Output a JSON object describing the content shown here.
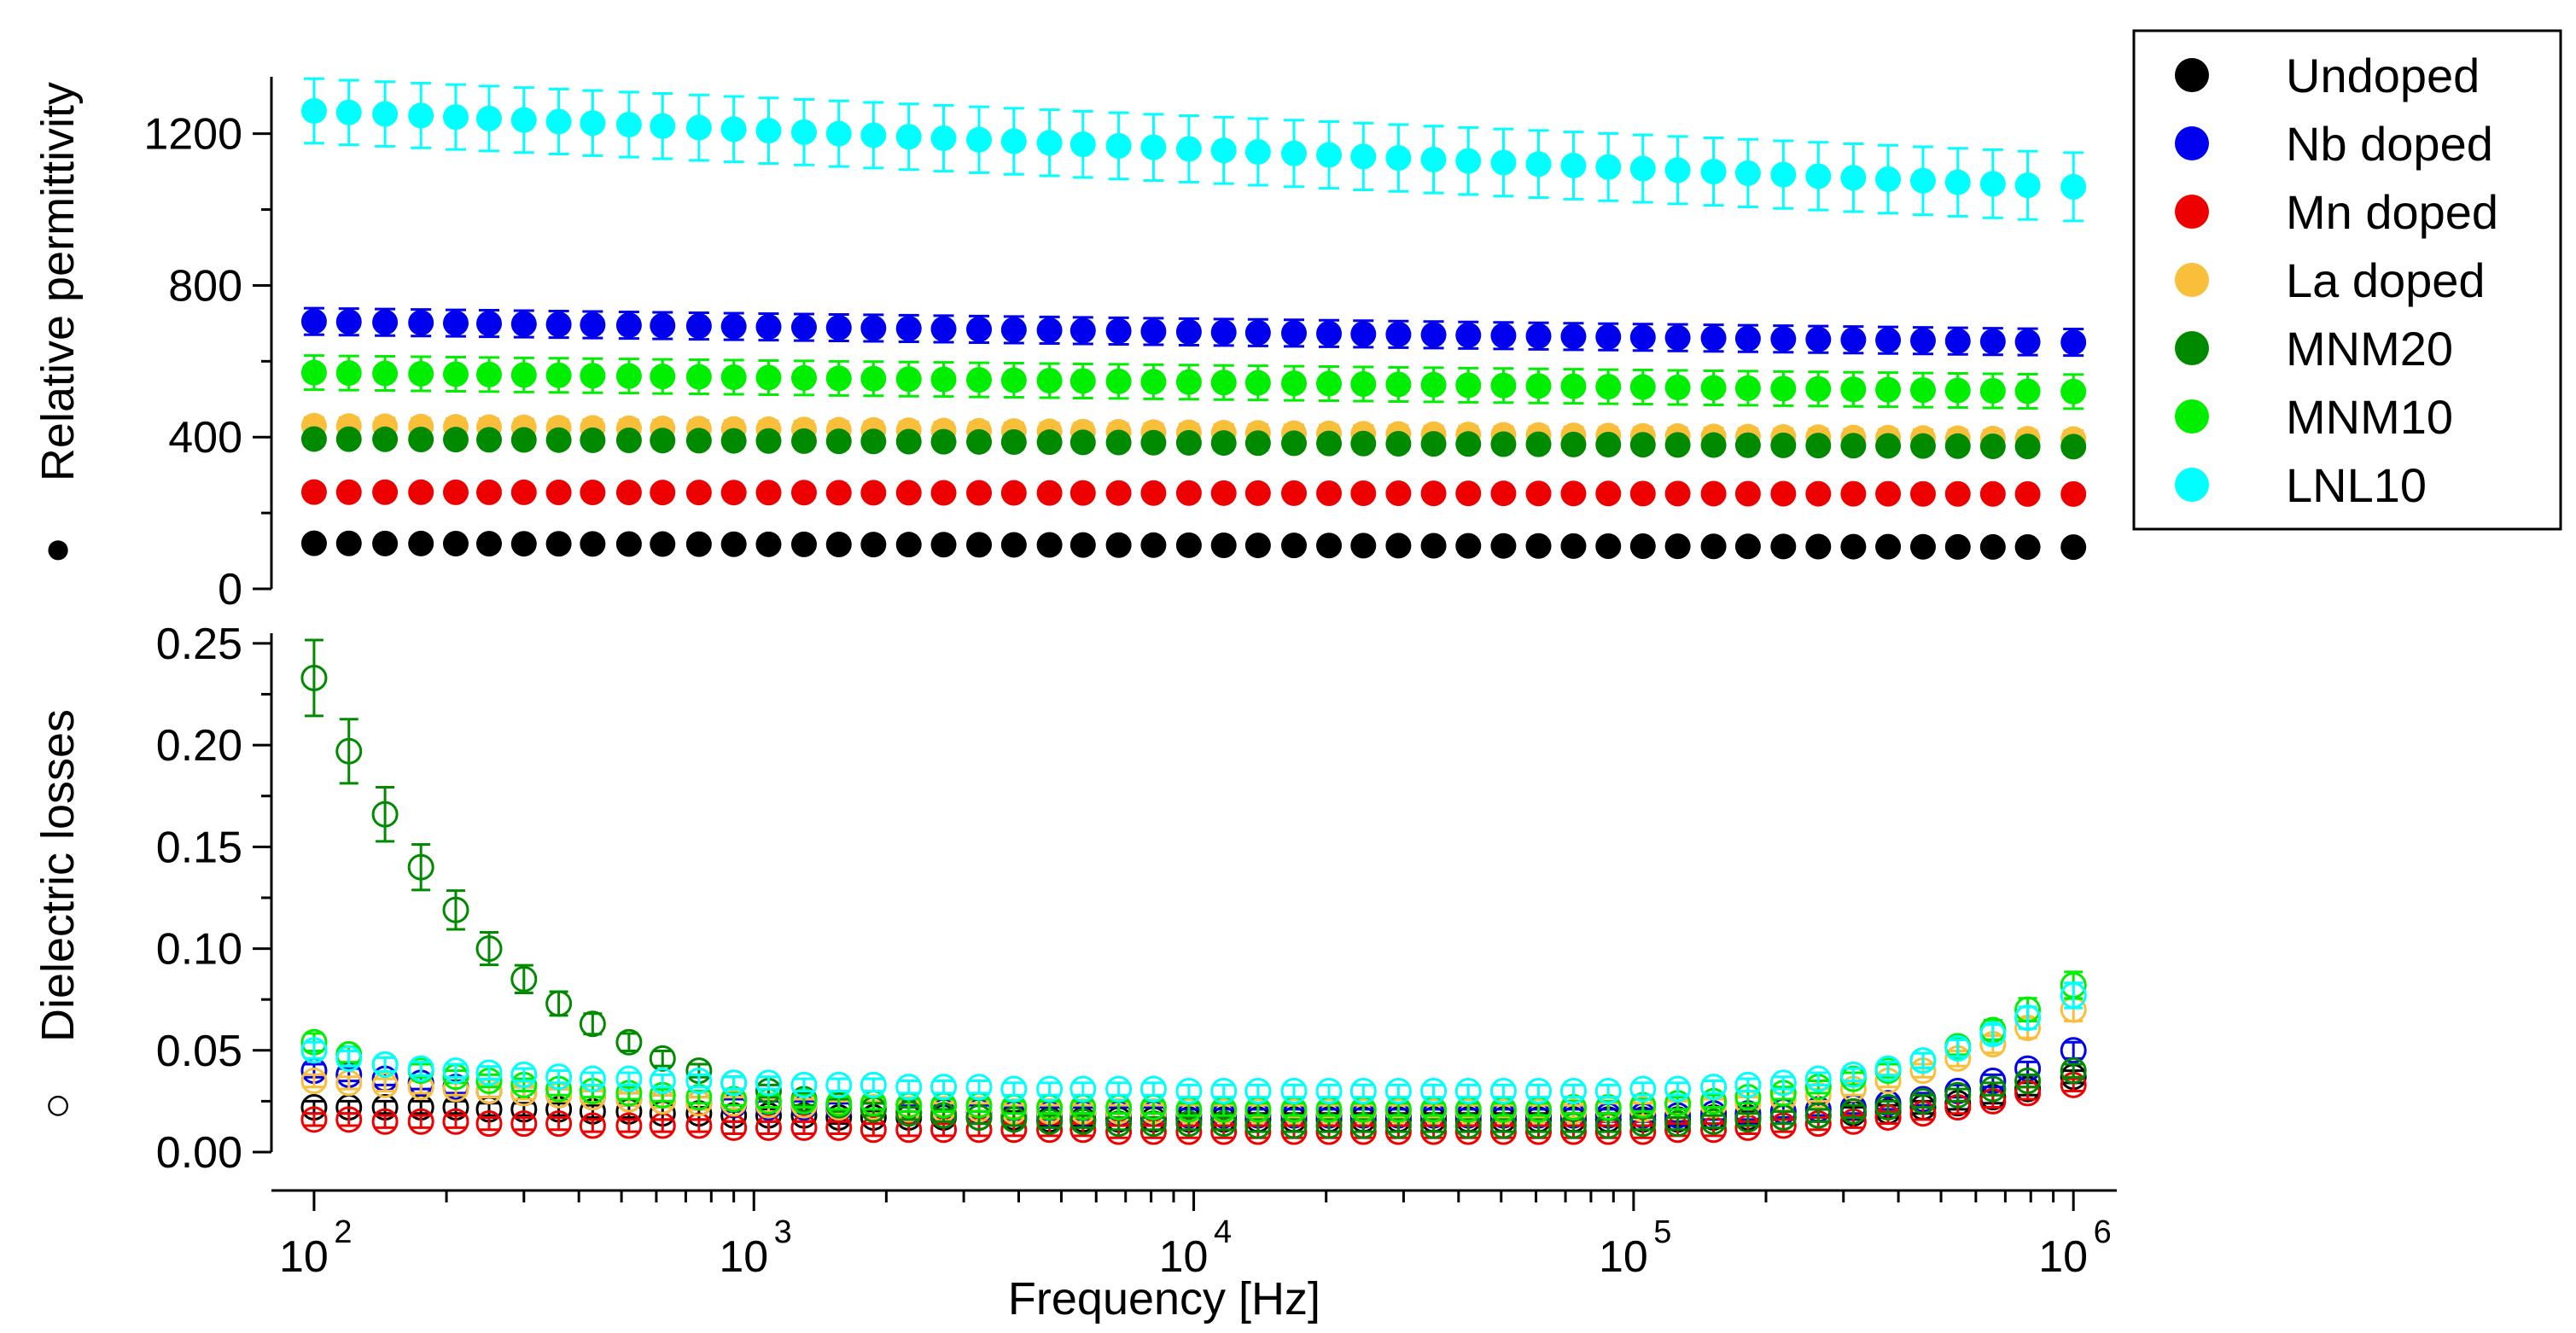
{
  "chart_data": [
    {
      "type": "scatter",
      "panel": "top",
      "ylabel": "Relative permittivity",
      "ylabel_marker": "●",
      "ylim": [
        0,
        1350
      ],
      "yticks": [
        0,
        400,
        800,
        1200
      ],
      "ytick_labels": [
        "0",
        "400",
        "800",
        "1200"
      ],
      "xscale": "log",
      "xlim": [
        80,
        1200000
      ],
      "marker": "filled-circle",
      "series": [
        {
          "name": "Undoped",
          "color": "#000000",
          "start": 120,
          "end": 110,
          "err_start": 8,
          "err_end": 8
        },
        {
          "name": "Nb doped",
          "color": "#0000ee",
          "start": 705,
          "end": 650,
          "err_start": 35,
          "err_end": 35
        },
        {
          "name": "Mn doped",
          "color": "#ee0000",
          "start": 255,
          "end": 250,
          "err_start": 12,
          "err_end": 12
        },
        {
          "name": "La doped",
          "color": "#f9bf3b",
          "start": 430,
          "end": 395,
          "err_start": 22,
          "err_end": 22
        },
        {
          "name": "MNM20",
          "color": "#008a00",
          "start": 395,
          "end": 375,
          "err_start": 18,
          "err_end": 18
        },
        {
          "name": "MNM10",
          "color": "#00ee00",
          "start": 570,
          "end": 520,
          "err_start": 45,
          "err_end": 45
        },
        {
          "name": "LNL10",
          "color": "#00ffff",
          "start": 1260,
          "end": 1060,
          "err_start": 85,
          "err_end": 90
        }
      ]
    },
    {
      "type": "scatter",
      "panel": "bottom",
      "ylabel": "Dielectric losses",
      "ylabel_marker": "○",
      "ylim": [
        0,
        0.255
      ],
      "yticks": [
        0,
        0.05,
        0.1,
        0.15,
        0.2,
        0.25
      ],
      "ytick_labels": [
        "0.00",
        "0.05",
        "0.10",
        "0.15",
        "0.20",
        "0.25"
      ],
      "xscale": "log",
      "xlim": [
        80,
        1200000
      ],
      "xlabel": "Frequency [Hz]",
      "xticks": [
        100,
        1000,
        10000,
        100000,
        1000000
      ],
      "xtick_base": "10",
      "xtick_exponents": [
        "2",
        "3",
        "4",
        "5",
        "6"
      ],
      "marker": "open-circle",
      "x": [
        100,
        120,
        145,
        175,
        210,
        250,
        300,
        360,
        430,
        520,
        620,
        750,
        900,
        1080,
        1300,
        1560,
        1870,
        2250,
        2700,
        3250,
        3900,
        4700,
        5600,
        6750,
        8100,
        9750,
        11700,
        14000,
        16900,
        20300,
        24300,
        29200,
        35100,
        42100,
        50600,
        60800,
        73000,
        87600,
        105000,
        126000,
        152000,
        182000,
        219000,
        263000,
        316000,
        379000,
        455000,
        546000,
        656000,
        787000,
        1000000
      ],
      "series": [
        {
          "name": "Undoped",
          "color": "#000000",
          "values": [
            0.022,
            0.022,
            0.022,
            0.022,
            0.022,
            0.021,
            0.021,
            0.021,
            0.02,
            0.02,
            0.019,
            0.019,
            0.018,
            0.018,
            0.018,
            0.017,
            0.017,
            0.017,
            0.017,
            0.017,
            0.017,
            0.016,
            0.016,
            0.016,
            0.016,
            0.016,
            0.016,
            0.016,
            0.016,
            0.016,
            0.016,
            0.016,
            0.016,
            0.016,
            0.016,
            0.016,
            0.016,
            0.016,
            0.016,
            0.016,
            0.017,
            0.017,
            0.017,
            0.018,
            0.019,
            0.02,
            0.022,
            0.024,
            0.027,
            0.031,
            0.037
          ]
        },
        {
          "name": "Nb doped",
          "color": "#0000ee",
          "values": [
            0.04,
            0.038,
            0.036,
            0.034,
            0.032,
            0.03,
            0.029,
            0.028,
            0.027,
            0.026,
            0.025,
            0.024,
            0.023,
            0.022,
            0.022,
            0.021,
            0.021,
            0.02,
            0.02,
            0.02,
            0.019,
            0.019,
            0.019,
            0.019,
            0.019,
            0.018,
            0.018,
            0.018,
            0.018,
            0.018,
            0.018,
            0.018,
            0.018,
            0.018,
            0.018,
            0.018,
            0.018,
            0.018,
            0.018,
            0.018,
            0.019,
            0.019,
            0.02,
            0.021,
            0.022,
            0.024,
            0.026,
            0.03,
            0.035,
            0.041,
            0.05
          ]
        },
        {
          "name": "Mn doped",
          "color": "#ee0000",
          "values": [
            0.016,
            0.016,
            0.015,
            0.015,
            0.015,
            0.014,
            0.014,
            0.014,
            0.013,
            0.013,
            0.013,
            0.013,
            0.012,
            0.012,
            0.012,
            0.012,
            0.011,
            0.011,
            0.011,
            0.011,
            0.011,
            0.011,
            0.011,
            0.01,
            0.01,
            0.01,
            0.01,
            0.01,
            0.01,
            0.01,
            0.01,
            0.01,
            0.01,
            0.01,
            0.01,
            0.01,
            0.01,
            0.01,
            0.01,
            0.011,
            0.011,
            0.012,
            0.013,
            0.014,
            0.015,
            0.017,
            0.019,
            0.022,
            0.025,
            0.029,
            0.033
          ]
        },
        {
          "name": "La doped",
          "color": "#f9bf3b",
          "values": [
            0.035,
            0.034,
            0.033,
            0.032,
            0.031,
            0.03,
            0.029,
            0.028,
            0.027,
            0.026,
            0.025,
            0.024,
            0.024,
            0.023,
            0.023,
            0.022,
            0.022,
            0.021,
            0.021,
            0.021,
            0.02,
            0.02,
            0.02,
            0.02,
            0.02,
            0.02,
            0.02,
            0.02,
            0.02,
            0.02,
            0.02,
            0.02,
            0.02,
            0.02,
            0.02,
            0.02,
            0.02,
            0.021,
            0.021,
            0.022,
            0.023,
            0.024,
            0.026,
            0.028,
            0.031,
            0.035,
            0.04,
            0.046,
            0.053,
            0.061,
            0.07
          ]
        },
        {
          "name": "MNM20",
          "color": "#008a00",
          "values": [
            0.233,
            0.197,
            0.166,
            0.14,
            0.119,
            0.1,
            0.085,
            0.073,
            0.063,
            0.054,
            0.046,
            0.04,
            0.034,
            0.03,
            0.026,
            0.023,
            0.021,
            0.019,
            0.018,
            0.017,
            0.016,
            0.015,
            0.015,
            0.014,
            0.014,
            0.014,
            0.014,
            0.013,
            0.013,
            0.013,
            0.013,
            0.013,
            0.013,
            0.013,
            0.013,
            0.013,
            0.013,
            0.013,
            0.014,
            0.014,
            0.015,
            0.016,
            0.017,
            0.018,
            0.02,
            0.022,
            0.025,
            0.028,
            0.031,
            0.035,
            0.04
          ]
        },
        {
          "name": "MNM10",
          "color": "#00ee00",
          "values": [
            0.054,
            0.048,
            0.043,
            0.04,
            0.037,
            0.035,
            0.033,
            0.031,
            0.03,
            0.029,
            0.028,
            0.027,
            0.026,
            0.025,
            0.025,
            0.024,
            0.024,
            0.023,
            0.023,
            0.023,
            0.022,
            0.022,
            0.022,
            0.022,
            0.022,
            0.021,
            0.021,
            0.021,
            0.021,
            0.021,
            0.021,
            0.021,
            0.021,
            0.021,
            0.021,
            0.021,
            0.022,
            0.022,
            0.023,
            0.024,
            0.025,
            0.027,
            0.029,
            0.032,
            0.036,
            0.04,
            0.045,
            0.052,
            0.06,
            0.07,
            0.082
          ]
        },
        {
          "name": "LNL10",
          "color": "#00ffff",
          "values": [
            0.05,
            0.046,
            0.043,
            0.041,
            0.04,
            0.039,
            0.038,
            0.037,
            0.036,
            0.036,
            0.035,
            0.035,
            0.034,
            0.034,
            0.033,
            0.033,
            0.033,
            0.032,
            0.032,
            0.032,
            0.031,
            0.031,
            0.031,
            0.031,
            0.031,
            0.03,
            0.03,
            0.03,
            0.03,
            0.03,
            0.03,
            0.03,
            0.03,
            0.03,
            0.03,
            0.03,
            0.03,
            0.03,
            0.031,
            0.031,
            0.032,
            0.033,
            0.034,
            0.036,
            0.038,
            0.041,
            0.045,
            0.051,
            0.058,
            0.066,
            0.077
          ]
        }
      ]
    }
  ],
  "legend": {
    "placement": "top-right",
    "items": [
      "Undoped",
      "Nb doped",
      "Mn doped",
      "La doped",
      "MNM20",
      "MNM10",
      "LNL10"
    ]
  }
}
